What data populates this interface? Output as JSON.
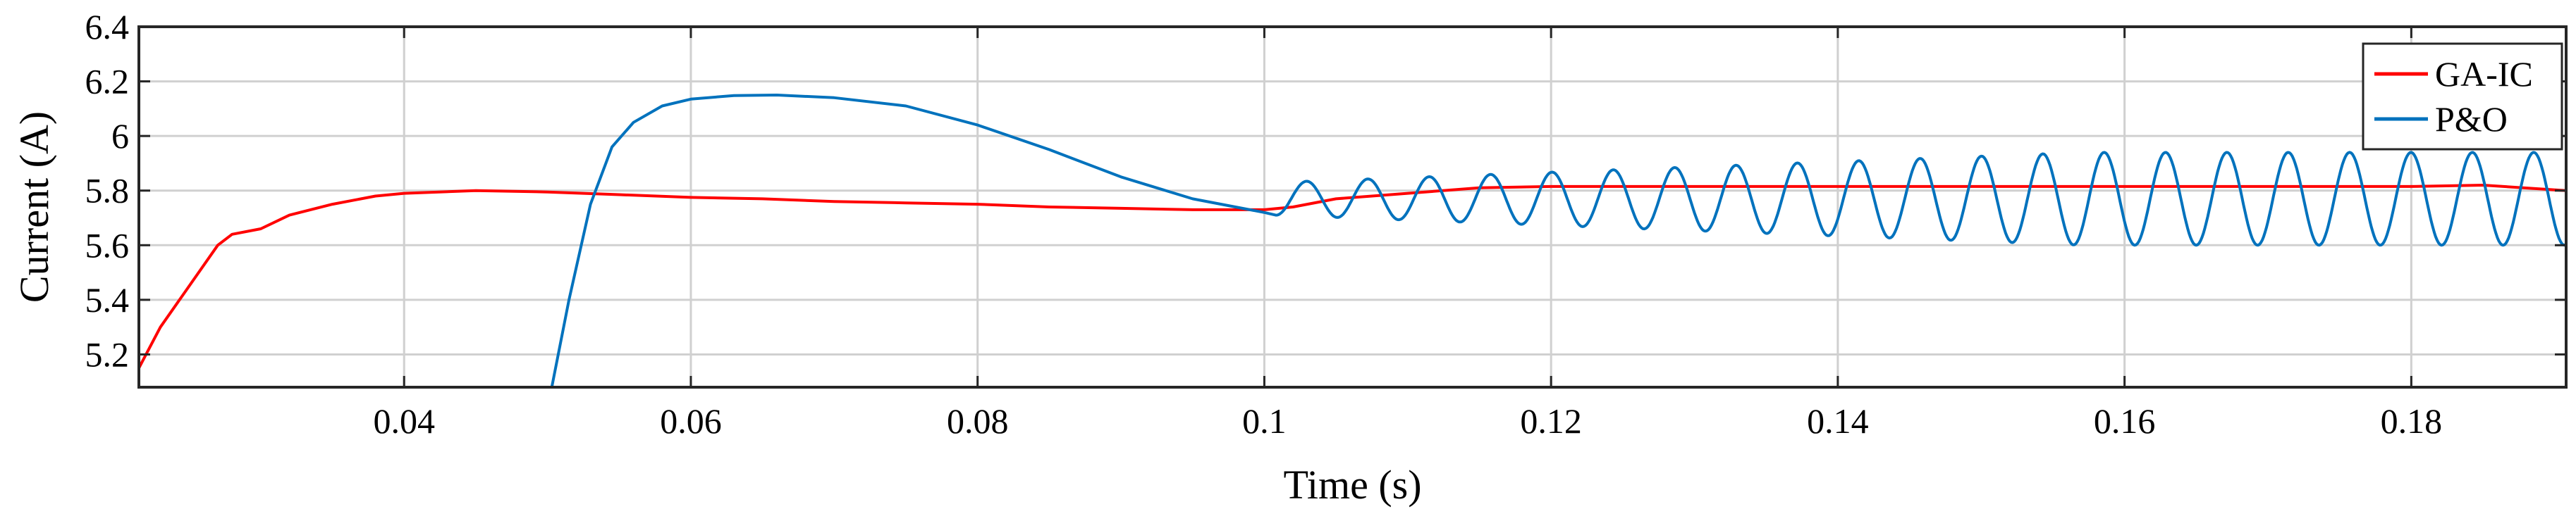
{
  "chart_data": {
    "type": "line",
    "title": "",
    "xlabel": "Time (s)",
    "ylabel": "Current (A)",
    "xlim": [
      0.0215,
      0.1908
    ],
    "ylim": [
      5.08,
      6.4
    ],
    "grid": true,
    "legend_position": "top-right",
    "x_ticks": [
      0.04,
      0.06,
      0.08,
      0.1,
      0.12,
      0.14,
      0.16,
      0.18
    ],
    "x_tick_labels": [
      "0.04",
      "0.06",
      "0.08",
      "0.1",
      "0.12",
      "0.14",
      "0.16",
      "0.18"
    ],
    "y_ticks": [
      5.2,
      5.4,
      5.6,
      5.8,
      6,
      6.2,
      6.4
    ],
    "y_tick_labels": [
      "5.2",
      "5.4",
      "5.6",
      "5.8",
      "6",
      "6.2",
      "6.4"
    ],
    "series": [
      {
        "name": "GA-IC",
        "color": "#ff0000",
        "x": [
          0.0215,
          0.023,
          0.025,
          0.027,
          0.028,
          0.03,
          0.032,
          0.035,
          0.038,
          0.04,
          0.045,
          0.05,
          0.055,
          0.06,
          0.065,
          0.07,
          0.075,
          0.08,
          0.085,
          0.09,
          0.095,
          0.1,
          0.102,
          0.105,
          0.11,
          0.115,
          0.12,
          0.13,
          0.14,
          0.15,
          0.16,
          0.17,
          0.18,
          0.185,
          0.1908
        ],
        "y": [
          5.15,
          5.3,
          5.45,
          5.6,
          5.64,
          5.66,
          5.71,
          5.75,
          5.78,
          5.79,
          5.8,
          5.795,
          5.785,
          5.775,
          5.77,
          5.76,
          5.755,
          5.75,
          5.74,
          5.735,
          5.73,
          5.73,
          5.74,
          5.77,
          5.79,
          5.81,
          5.815,
          5.815,
          5.815,
          5.815,
          5.815,
          5.815,
          5.815,
          5.82,
          5.8
        ]
      },
      {
        "name": "P&O",
        "color": "#0072bd",
        "x": [
          0.0503,
          0.0515,
          0.053,
          0.0545,
          0.056,
          0.058,
          0.06,
          0.063,
          0.066,
          0.07,
          0.075,
          0.08,
          0.085,
          0.09,
          0.095,
          0.1,
          0.1008
        ],
        "y": [
          5.08,
          5.4,
          5.75,
          5.96,
          6.05,
          6.11,
          6.135,
          6.148,
          6.15,
          6.14,
          6.11,
          6.04,
          5.95,
          5.85,
          5.77,
          5.72,
          5.71
        ],
        "oscillation": {
          "start_time": 0.1008,
          "end_time": 0.1908,
          "center": 5.77,
          "amplitude_start": 0.06,
          "amplitude_end": 0.17,
          "period": 0.00428,
          "final_value": 5.94
        }
      }
    ]
  }
}
